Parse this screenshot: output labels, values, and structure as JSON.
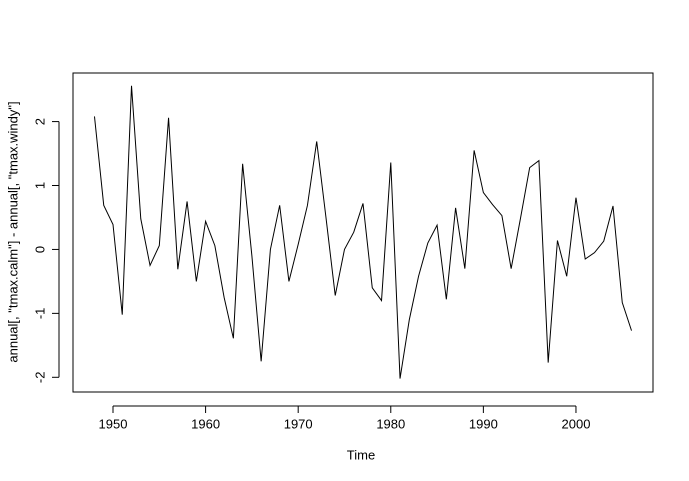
{
  "chart_data": {
    "type": "line",
    "xlabel": "Time",
    "ylabel": "annual[, \"tmax.calm\"] - annual[, \"tmax.windy\"]",
    "x": [
      1948,
      1949,
      1950,
      1951,
      1952,
      1953,
      1954,
      1955,
      1956,
      1957,
      1958,
      1959,
      1960,
      1961,
      1962,
      1963,
      1964,
      1965,
      1966,
      1967,
      1968,
      1969,
      1970,
      1971,
      1972,
      1973,
      1974,
      1975,
      1976,
      1977,
      1978,
      1979,
      1980,
      1981,
      1982,
      1983,
      1984,
      1985,
      1986,
      1987,
      1988,
      1989,
      1990,
      1991,
      1992,
      1993,
      1994,
      1995,
      1996,
      1997,
      1998,
      1999,
      2000,
      2001,
      2002,
      2003,
      2004,
      2005,
      2006
    ],
    "series": [
      {
        "color": "#000000",
        "values": [
          2.08,
          0.69,
          0.39,
          -1.02,
          2.56,
          0.48,
          -0.25,
          0.06,
          2.06,
          -0.31,
          0.75,
          -0.5,
          0.44,
          0.06,
          -0.75,
          -1.39,
          1.34,
          -0.1,
          -1.75,
          0.0,
          0.69,
          -0.5,
          0.08,
          0.69,
          1.69,
          0.5,
          -0.72,
          0.0,
          0.27,
          0.72,
          -0.6,
          -0.8,
          1.36,
          -2.02,
          -1.1,
          -0.42,
          0.1,
          0.38,
          -0.78,
          0.65,
          -0.3,
          1.55,
          0.89,
          0.7,
          0.53,
          -0.3,
          0.48,
          1.28,
          1.39,
          -1.77,
          0.14,
          -0.42,
          0.81,
          -0.15,
          -0.05,
          0.13,
          0.68,
          -0.83,
          -1.27
        ]
      }
    ],
    "xlim": [
      1945.68,
      2008.32
    ],
    "ylim": [
      -2.23,
      2.76
    ],
    "xticks": [
      1950,
      1960,
      1970,
      1980,
      1990,
      2000
    ],
    "yticks": [
      -2,
      -1,
      0,
      1,
      2
    ]
  }
}
